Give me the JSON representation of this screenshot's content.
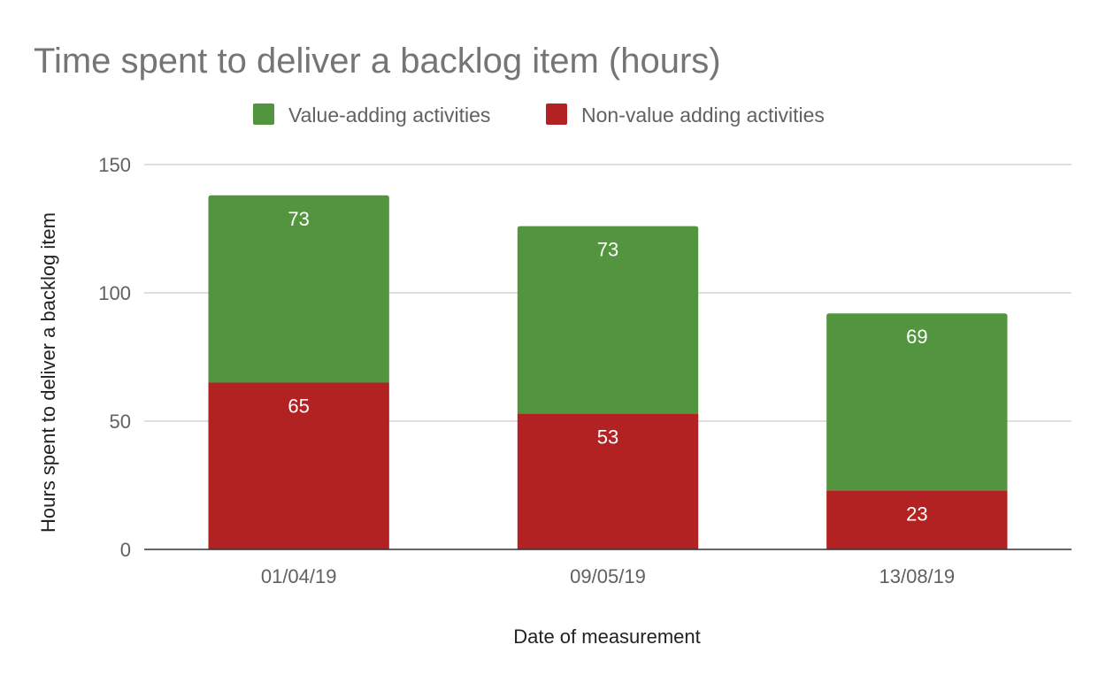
{
  "chart_data": {
    "type": "bar",
    "stacked": true,
    "title": "Time spent to deliver a backlog item (hours)",
    "xlabel": "Date of measurement",
    "ylabel": "Hours spent to deliver a backlog item",
    "categories": [
      "01/04/19",
      "09/05/19",
      "13/08/19"
    ],
    "series": [
      {
        "name": "Non-value adding activities",
        "values": [
          65,
          53,
          23
        ],
        "color": "#b22222"
      },
      {
        "name": "Value-adding activities",
        "values": [
          73,
          73,
          69
        ],
        "color": "#53953e"
      }
    ],
    "ylim": [
      0,
      150
    ],
    "yticks": [
      0,
      50,
      100,
      150
    ],
    "grid": true,
    "legend_position": "top"
  },
  "legend": {
    "items": [
      {
        "label": "Value-adding activities",
        "color": "#53953e"
      },
      {
        "label": "Non-value adding activities",
        "color": "#b22222"
      }
    ]
  }
}
